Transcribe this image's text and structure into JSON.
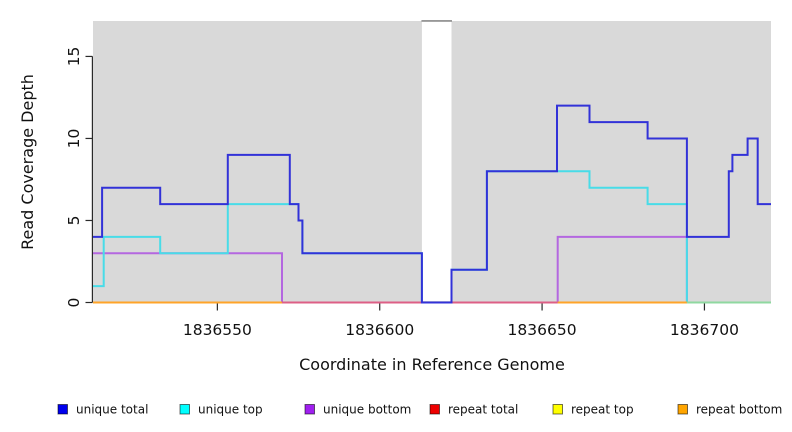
{
  "chart_data": {
    "type": "line",
    "step": true,
    "title": "",
    "xlabel": "Coordinate in Reference Genome",
    "ylabel": "Read Coverage Depth",
    "xlim": [
      1836511.7,
      1836720.5
    ],
    "ylim": [
      0,
      17.16
    ],
    "x_ticks": [
      1836550,
      1836600,
      1836650,
      1836700
    ],
    "x_tick_labels": [
      "1836550",
      "1836600",
      "1836650",
      "1836700"
    ],
    "y_ticks": [
      0,
      5,
      10,
      15
    ],
    "y_tick_labels": [
      "0",
      "5",
      "10",
      "15"
    ],
    "grid": false,
    "panel_bg": "#d9d9d9",
    "no_data_gap": {
      "x_start": 1836613.0,
      "x_end": 1836622.1,
      "cap_color": "#8a8a8a"
    },
    "series": [
      {
        "name": "unique total",
        "color": "#3232d8",
        "points": [
          [
            1836511.7,
            4
          ],
          [
            1836514.5,
            7
          ],
          [
            1836532.4,
            6
          ],
          [
            1836553.2,
            9
          ],
          [
            1836572.3,
            6
          ],
          [
            1836575.0,
            5
          ],
          [
            1836576.2,
            3
          ],
          [
            1836613.0,
            0
          ],
          [
            1836622.1,
            2
          ],
          [
            1836633.0,
            8
          ],
          [
            1836654.6,
            12
          ],
          [
            1836664.6,
            11
          ],
          [
            1836682.5,
            10
          ],
          [
            1836694.6,
            4
          ],
          [
            1836707.5,
            8
          ],
          [
            1836708.6,
            9
          ],
          [
            1836713.3,
            10
          ],
          [
            1836716.4,
            6
          ],
          [
            1836720.5,
            6
          ]
        ]
      },
      {
        "name": "unique top",
        "color": "#48dce8",
        "points": [
          [
            1836511.7,
            1
          ],
          [
            1836515.0,
            4
          ],
          [
            1836532.4,
            3
          ],
          [
            1836553.2,
            6
          ],
          [
            1836575.0,
            5
          ],
          [
            1836576.2,
            3
          ],
          [
            1836613.0,
            0
          ],
          [
            1836622.1,
            2
          ],
          [
            1836633.0,
            8
          ],
          [
            1836664.6,
            7
          ],
          [
            1836682.5,
            6
          ],
          [
            1836694.6,
            0
          ],
          [
            1836720.5,
            0
          ]
        ]
      },
      {
        "name": "unique bottom",
        "color": "#b467e0",
        "points": [
          [
            1836511.7,
            3
          ],
          [
            1836569.9,
            0
          ],
          [
            1836654.8,
            4
          ],
          [
            1836694.6,
            0
          ],
          [
            1836720.5,
            0
          ]
        ]
      },
      {
        "name": "repeat total",
        "color": "#e03030",
        "points": [
          [
            1836511.7,
            0
          ],
          [
            1836720.5,
            0
          ]
        ]
      },
      {
        "name": "repeat top",
        "color": "#f0f020",
        "points": [
          [
            1836511.7,
            0
          ],
          [
            1836720.5,
            0
          ]
        ]
      },
      {
        "name": "repeat bottom",
        "color": "#ffa428",
        "points": [
          [
            1836511.7,
            0
          ],
          [
            1836720.5,
            0
          ]
        ]
      }
    ],
    "baseline_segments": [
      {
        "from": 1836511.7,
        "to": 1836569.9,
        "color": "#ffa428"
      },
      {
        "from": 1836569.9,
        "to": 1836654.8,
        "color": "#dd5f86"
      },
      {
        "from": 1836654.8,
        "to": 1836694.6,
        "color": "#ffa428"
      },
      {
        "from": 1836694.6,
        "to": 1836720.5,
        "color": "#8fd8a0"
      }
    ]
  },
  "legend": {
    "items": [
      {
        "label": "unique total",
        "color": "#0000ee"
      },
      {
        "label": "unique top",
        "color": "#00ffff"
      },
      {
        "label": "unique bottom",
        "color": "#a020f0"
      },
      {
        "label": "repeat total",
        "color": "#ee0000"
      },
      {
        "label": "repeat top",
        "color": "#ffff00"
      },
      {
        "label": "repeat bottom",
        "color": "#ffa500"
      }
    ]
  }
}
